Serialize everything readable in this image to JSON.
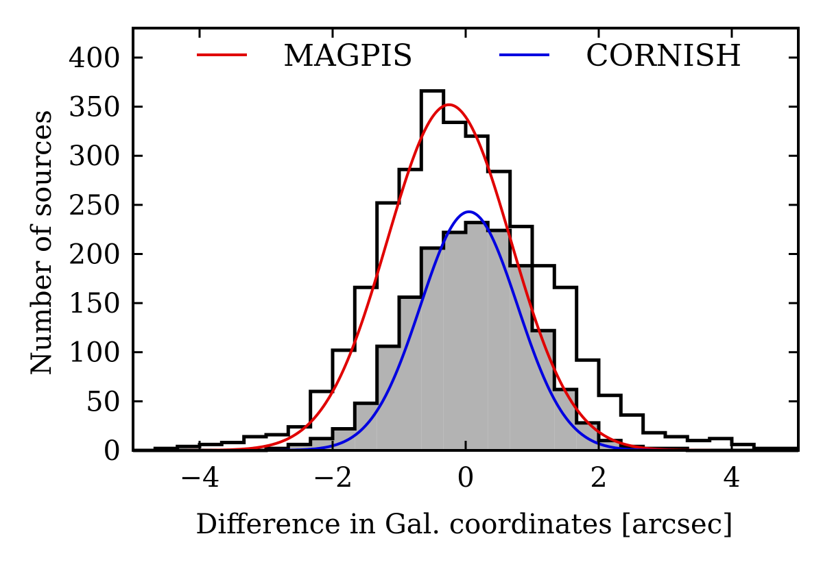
{
  "chart_data": {
    "type": "histogram",
    "xlabel": "Difference in Gal. coordinates [arcsec]",
    "ylabel": "Number of sources",
    "xlim": [
      -5,
      5
    ],
    "ylim": [
      0,
      430
    ],
    "x_ticks": [
      -4,
      -2,
      0,
      2,
      4
    ],
    "x_tick_labels": [
      "−4",
      "−2",
      "0",
      "2",
      "4"
    ],
    "y_ticks": [
      0,
      50,
      100,
      150,
      200,
      250,
      300,
      350,
      400
    ],
    "y_tick_labels": [
      "0",
      "50",
      "100",
      "150",
      "200",
      "250",
      "300",
      "350",
      "400"
    ],
    "bin_edges": [
      -5.0,
      -4.667,
      -4.333,
      -4.0,
      -3.667,
      -3.333,
      -3.0,
      -2.667,
      -2.333,
      -2.0,
      -1.667,
      -1.333,
      -1.0,
      -0.667,
      -0.333,
      0.0,
      0.333,
      0.667,
      1.0,
      1.333,
      1.667,
      2.0,
      2.333,
      2.667,
      3.0,
      3.333,
      3.667,
      4.0,
      4.333,
      4.667,
      5.0
    ],
    "histograms": [
      {
        "name": "MAGPIS sources",
        "style": "step",
        "color": "#000000",
        "counts": [
          0,
          2,
          4,
          6,
          8,
          14,
          16,
          24,
          60,
          102,
          166,
          252,
          286,
          366,
          334,
          320,
          284,
          228,
          188,
          166,
          92,
          56,
          36,
          18,
          14,
          10,
          12,
          6,
          2,
          2
        ]
      },
      {
        "name": "CORNISH sources",
        "style": "filled-step",
        "color": "#000000",
        "fill": "#b3b3b3",
        "counts": [
          0,
          0,
          0,
          0,
          0,
          0,
          2,
          6,
          12,
          22,
          48,
          106,
          156,
          206,
          222,
          232,
          224,
          188,
          122,
          62,
          28,
          10,
          4,
          2,
          2,
          0,
          0,
          0,
          0,
          0
        ]
      }
    ],
    "curves": [
      {
        "name": "MAGPIS",
        "type": "gaussian",
        "color": "#e00000",
        "amplitude": 352,
        "mean": -0.25,
        "sigma": 0.93
      },
      {
        "name": "CORNISH",
        "type": "gaussian",
        "color": "#0000e0",
        "amplitude": 243,
        "mean": 0.05,
        "sigma": 0.73
      }
    ],
    "legend": {
      "position": "top-center",
      "entries": [
        {
          "label": "MAGPIS",
          "color": "#e00000"
        },
        {
          "label": "CORNISH",
          "color": "#0000e0"
        }
      ]
    }
  }
}
